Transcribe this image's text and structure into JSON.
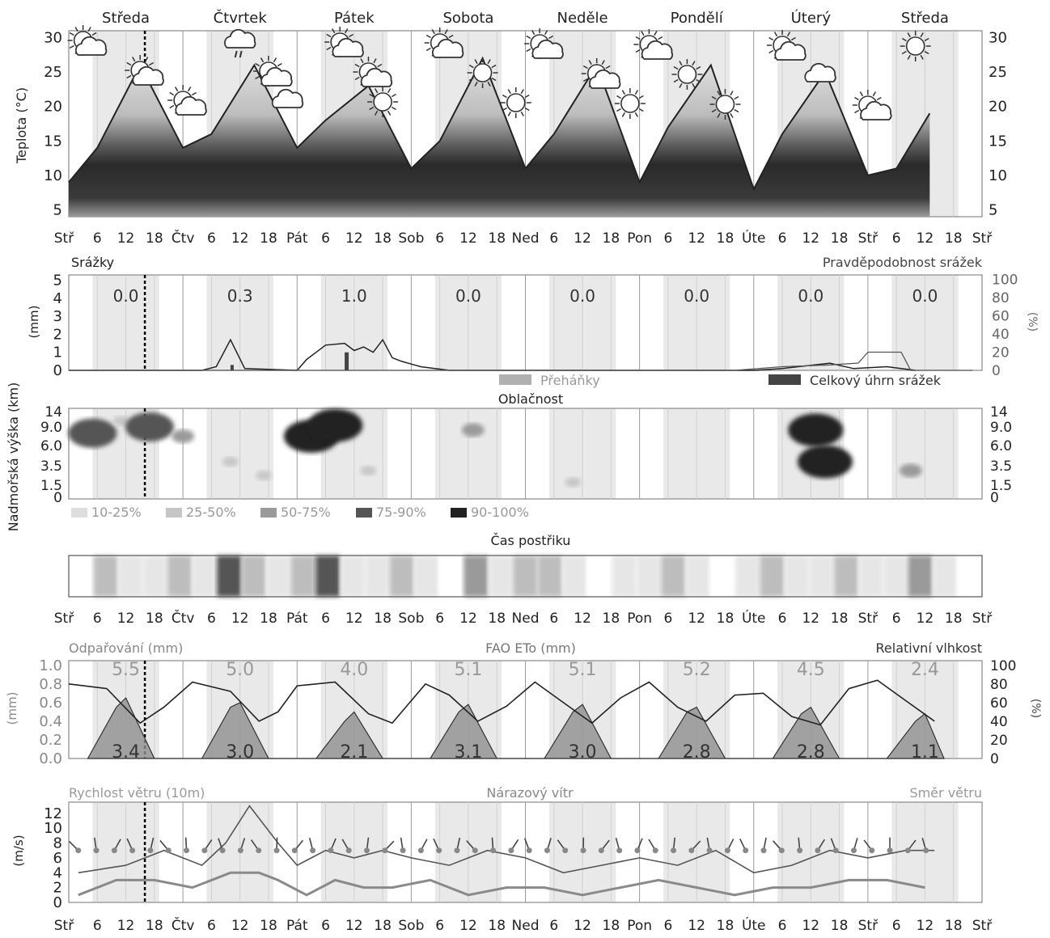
{
  "days": [
    "Středa",
    "Čtvrtek",
    "Pátek",
    "Sobota",
    "Neděle",
    "Pondělí",
    "Úterý",
    "Středa"
  ],
  "time_ticks": [
    "Stř",
    "6",
    "12",
    "18",
    "Čtv",
    "6",
    "12",
    "18",
    "Pát",
    "6",
    "12",
    "18",
    "Sob",
    "6",
    "12",
    "18",
    "Ned",
    "6",
    "12",
    "18",
    "Pon",
    "6",
    "12",
    "18",
    "Úte",
    "6",
    "12",
    "18",
    "Stř",
    "6",
    "12",
    "18",
    "Stř"
  ],
  "colors": {
    "line": "#222222",
    "band_dark": "#2b2b2b",
    "band_mid": "#7a7a7a",
    "band_light": "#c8c8c8",
    "grid": "#9a9a9a",
    "now_line": "#000000",
    "wind_line": "#8a8a8a"
  },
  "chart_data": [
    {
      "type": "area",
      "id": "temperature",
      "ylabel": "Teplota (°C)",
      "yticks": [
        5,
        10,
        15,
        20,
        25,
        30
      ],
      "ylim": [
        4,
        31
      ],
      "series": [
        {
          "x_hours": [
            0,
            6,
            15,
            24,
            30,
            39,
            48,
            54,
            63,
            72,
            78,
            87,
            96,
            102,
            111,
            120,
            126,
            135,
            144,
            150,
            159,
            168,
            174,
            181
          ],
          "values": [
            9,
            14,
            26,
            14,
            16,
            26,
            14,
            18,
            23,
            11,
            15,
            27,
            11,
            16,
            26,
            9,
            17,
            26,
            8,
            16,
            25,
            10,
            11,
            19
          ]
        }
      ],
      "icons": [
        "partly-cloudy",
        "partly-cloudy",
        "partly-cloudy",
        "rain-cloud",
        "partly-cloudy",
        "cloud",
        "partly-cloudy",
        "partly-cloudy",
        "sun",
        "partly-cloudy",
        "sun",
        "sun",
        "partly-cloudy",
        "partly-cloudy",
        "sun",
        "partly-cloudy",
        "sun",
        "sun",
        "partly-cloudy",
        "cloud",
        "partly-cloudy",
        "sun"
      ]
    },
    {
      "type": "line",
      "id": "precipitation",
      "title": "Srážky",
      "right_title": "Pravděpodobnost srážek",
      "ylabel": "(mm)",
      "y2label": "(%)",
      "yticks": [
        0,
        1,
        2,
        3,
        4,
        5
      ],
      "y2ticks": [
        0,
        20,
        40,
        60,
        80,
        100
      ],
      "daily_totals": [
        "0.0",
        "0.3",
        "1.0",
        "0.0",
        "0.0",
        "0.0",
        "0.0",
        "0.0"
      ],
      "legend": [
        "Přeháňky",
        "Celkový úhrn srážek"
      ],
      "series": [
        {
          "x_hours": [
            0,
            28,
            31,
            34,
            37,
            48,
            50,
            54,
            58,
            60,
            62,
            64,
            66,
            68,
            70,
            74,
            80,
            144,
            150,
            160,
            165,
            172,
            178
          ],
          "values": [
            0,
            0,
            0.2,
            1.7,
            0.1,
            0,
            0.6,
            1.4,
            1.5,
            1.1,
            1.3,
            1.0,
            1.7,
            0.7,
            0.5,
            0.2,
            0,
            0,
            0.1,
            0.4,
            0.1,
            0.2,
            0
          ]
        },
        {
          "x_hours": [
            0,
            140,
            150,
            160,
            166,
            168,
            175,
            177,
            190
          ],
          "values": [
            0,
            0,
            4,
            6,
            8,
            20,
            20,
            0,
            0
          ]
        }
      ]
    },
    {
      "type": "heatmap",
      "id": "clouds",
      "title": "Oblačnost",
      "ylabel": "Nadmořská výška (km)",
      "yticks": [
        "0",
        "1.5",
        "3.5",
        "6.0",
        "9.0",
        "14"
      ],
      "legend": [
        "10-25%",
        "25-50%",
        "50-75%",
        "75-90%",
        "90-100%"
      ],
      "blobs": [
        {
          "x_hours": 5,
          "y_km": 8.0,
          "level": 3
        },
        {
          "x_hours": 11,
          "y_km": 11.0,
          "level": 1
        },
        {
          "x_hours": 17,
          "y_km": 9.0,
          "level": 3
        },
        {
          "x_hours": 24,
          "y_km": 7.5,
          "level": 2
        },
        {
          "x_hours": 34,
          "y_km": 4.0,
          "level": 1
        },
        {
          "x_hours": 41,
          "y_km": 2.5,
          "level": 1
        },
        {
          "x_hours": 51,
          "y_km": 7.5,
          "level": 4
        },
        {
          "x_hours": 56,
          "y_km": 9.5,
          "level": 4
        },
        {
          "x_hours": 63,
          "y_km": 3.0,
          "level": 1
        },
        {
          "x_hours": 85,
          "y_km": 8.5,
          "level": 2
        },
        {
          "x_hours": 106,
          "y_km": 1.8,
          "level": 1
        },
        {
          "x_hours": 157,
          "y_km": 8.5,
          "level": 4
        },
        {
          "x_hours": 159,
          "y_km": 4.0,
          "level": 4
        },
        {
          "x_hours": 177,
          "y_km": 3.0,
          "level": 2
        }
      ]
    },
    {
      "type": "heatmap",
      "id": "spray_time",
      "title": "Čas postřiku",
      "segments": [
        0,
        2,
        1,
        1,
        2,
        1,
        4,
        2,
        1,
        2,
        4,
        1,
        1,
        2,
        1,
        0,
        3,
        1,
        2,
        2,
        1,
        0,
        1,
        1,
        2,
        1,
        0,
        1,
        2,
        1,
        1,
        2,
        1,
        1,
        3,
        1,
        0
      ]
    },
    {
      "type": "area",
      "id": "evaporation",
      "title": "FAO ETo (mm)",
      "left_title": "Odpařování (mm)",
      "right_title": "Relativní vlhkost",
      "ylabel": "(mm)",
      "y2label": "(%)",
      "yticks": [
        "0.0",
        "0.2",
        "0.4",
        "0.6",
        "0.8",
        "1.0"
      ],
      "y2ticks": [
        0,
        20,
        40,
        60,
        80,
        100
      ],
      "eto_daily": [
        "5.5",
        "5.0",
        "4.0",
        "5.1",
        "5.1",
        "5.2",
        "4.5",
        "2.4"
      ],
      "evap_daily": [
        "3.4",
        "3.0",
        "2.1",
        "3.1",
        "3.0",
        "2.8",
        "2.8",
        "1.1"
      ],
      "series": [
        {
          "name": "Relativní vlhkost",
          "x_hours": [
            0,
            8,
            15,
            20,
            26,
            34,
            40,
            44,
            48,
            56,
            63,
            68,
            75,
            80,
            86,
            92,
            98,
            104,
            110,
            116,
            122,
            128,
            134,
            140,
            146,
            152,
            158,
            164,
            170,
            176,
            182
          ],
          "values": [
            80,
            75,
            38,
            55,
            82,
            72,
            40,
            50,
            78,
            82,
            48,
            38,
            80,
            68,
            40,
            56,
            82,
            60,
            38,
            65,
            82,
            55,
            40,
            68,
            70,
            45,
            36,
            75,
            84,
            62,
            40
          ]
        },
        {
          "name": "Odpařování",
          "x_hours": [
            4,
            10,
            12,
            18,
            28,
            34,
            36,
            42,
            52,
            58,
            60,
            66,
            76,
            82,
            84,
            90,
            100,
            106,
            108,
            114,
            124,
            130,
            132,
            138,
            148,
            154,
            156,
            162,
            172,
            178,
            180,
            184
          ],
          "values": [
            0,
            0.55,
            0.65,
            0,
            0,
            0.55,
            0.6,
            0,
            0,
            0.4,
            0.5,
            0,
            0,
            0.5,
            0.58,
            0,
            0,
            0.5,
            0.58,
            0,
            0,
            0.5,
            0.55,
            0,
            0,
            0.48,
            0.55,
            0,
            0,
            0.4,
            0.48,
            0
          ]
        }
      ]
    },
    {
      "type": "line",
      "id": "wind",
      "left_title": "Rychlost větru (10m)",
      "title": "Nárazový vítr",
      "right_title": "Směr větru",
      "ylabel": "(m/s)",
      "yticks": [
        0,
        2,
        4,
        6,
        8,
        10,
        12
      ],
      "series": [
        {
          "name": "Nárazový vítr",
          "x_hours": [
            2,
            12,
            20,
            28,
            33,
            38,
            44,
            48,
            54,
            60,
            66,
            72,
            80,
            88,
            96,
            104,
            112,
            120,
            128,
            136,
            144,
            152,
            160,
            168,
            176,
            182
          ],
          "values": [
            4,
            5,
            7,
            5,
            8,
            13,
            8,
            5,
            7,
            6,
            7,
            6,
            5,
            7,
            6,
            4,
            5,
            6,
            5,
            7,
            4,
            5,
            7,
            6,
            7,
            7
          ]
        },
        {
          "name": "Rychlost větru (10m)",
          "x_hours": [
            2,
            10,
            18,
            26,
            34,
            40,
            44,
            50,
            56,
            62,
            68,
            76,
            84,
            92,
            100,
            108,
            116,
            124,
            132,
            140,
            148,
            156,
            164,
            172,
            180
          ],
          "values": [
            1,
            3,
            3,
            2,
            4,
            4,
            3,
            1,
            3,
            2,
            2,
            3,
            1,
            2,
            2,
            1,
            2,
            3,
            2,
            1,
            2,
            2,
            3,
            3,
            2
          ]
        }
      ],
      "direction_points": 48
    }
  ]
}
